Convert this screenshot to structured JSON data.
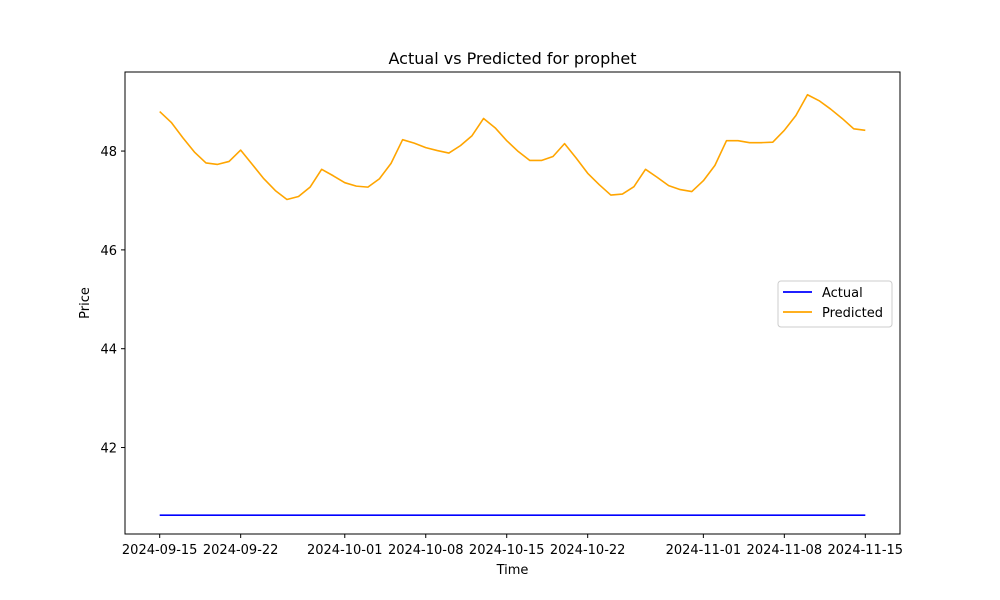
{
  "chart_data": {
    "type": "line",
    "title": "Actual vs Predicted for prophet",
    "xlabel": "Time",
    "ylabel": "Price",
    "x_range": [
      "2024-09-12",
      "2024-11-18"
    ],
    "ylim": [
      40.25,
      49.6
    ],
    "x_ticks": [
      "2024-09-15",
      "2024-09-22",
      "2024-10-01",
      "2024-10-08",
      "2024-10-15",
      "2024-10-22",
      "2024-11-01",
      "2024-11-08",
      "2024-11-15"
    ],
    "y_ticks": [
      42,
      44,
      46,
      48
    ],
    "grid": false,
    "legend_position": "center-right",
    "series": [
      {
        "name": "Actual",
        "color": "#0000ff",
        "x": [
          "2024-09-15",
          "2024-11-15"
        ],
        "values": [
          40.63,
          40.63
        ]
      },
      {
        "name": "Predicted",
        "color": "#ffa500",
        "x": [
          "2024-09-15",
          "2024-09-16",
          "2024-09-17",
          "2024-09-18",
          "2024-09-19",
          "2024-09-20",
          "2024-09-21",
          "2024-09-22",
          "2024-09-23",
          "2024-09-24",
          "2024-09-25",
          "2024-09-26",
          "2024-09-27",
          "2024-09-28",
          "2024-09-29",
          "2024-09-30",
          "2024-10-01",
          "2024-10-02",
          "2024-10-03",
          "2024-10-04",
          "2024-10-05",
          "2024-10-06",
          "2024-10-07",
          "2024-10-08",
          "2024-10-09",
          "2024-10-10",
          "2024-10-11",
          "2024-10-12",
          "2024-10-13",
          "2024-10-14",
          "2024-10-15",
          "2024-10-16",
          "2024-10-17",
          "2024-10-18",
          "2024-10-19",
          "2024-10-20",
          "2024-10-21",
          "2024-10-22",
          "2024-10-23",
          "2024-10-24",
          "2024-10-25",
          "2024-10-26",
          "2024-10-27",
          "2024-10-28",
          "2024-10-29",
          "2024-10-30",
          "2024-10-31",
          "2024-11-01",
          "2024-11-02",
          "2024-11-03",
          "2024-11-04",
          "2024-11-05",
          "2024-11-06",
          "2024-11-07",
          "2024-11-08",
          "2024-11-09",
          "2024-11-10",
          "2024-11-11",
          "2024-11-12",
          "2024-11-13",
          "2024-11-14",
          "2024-11-15"
        ],
        "values": [
          48.8,
          48.58,
          48.27,
          47.98,
          47.76,
          47.73,
          47.79,
          48.02,
          47.73,
          47.44,
          47.2,
          47.02,
          47.08,
          47.27,
          47.63,
          47.5,
          47.36,
          47.29,
          47.27,
          47.44,
          47.75,
          48.23,
          48.16,
          48.07,
          48.01,
          47.96,
          48.11,
          48.31,
          48.66,
          48.47,
          48.21,
          47.99,
          47.81,
          47.81,
          47.89,
          48.15,
          47.86,
          47.55,
          47.32,
          47.11,
          47.13,
          47.28,
          47.63,
          47.47,
          47.3,
          47.22,
          47.18,
          47.4,
          47.71,
          48.21,
          48.21,
          48.17,
          48.17,
          48.18,
          48.42,
          48.72,
          49.14,
          49.02,
          48.85,
          48.66,
          48.45,
          48.42
        ]
      }
    ]
  }
}
